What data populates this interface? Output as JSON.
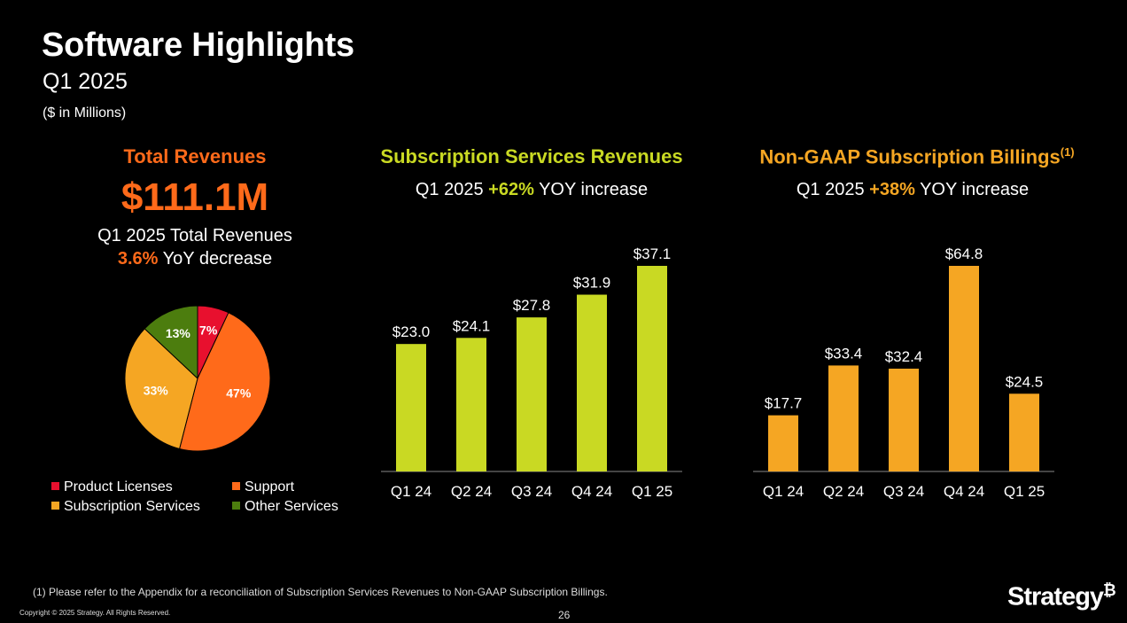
{
  "page": {
    "title": "Software Highlights",
    "subtitle": "Q1 2025",
    "units": "($ in Millions)",
    "footnote": "(1) Please refer to the Appendix for a reconciliation of Subscription Services Revenues to Non-GAAP Subscription Billings.",
    "copyright": "Copyright © 2025 Strategy. All Rights Reserved.",
    "page_number": "26",
    "logo_text": "Strategy",
    "logo_mark": "₿"
  },
  "total": {
    "title": "Total Revenues",
    "big_value": "$111.1M",
    "line1": "Q1 2025 Total Revenues",
    "change_value": "3.6%",
    "change_text": " YoY decrease"
  },
  "subs": {
    "title": "Subscription Services Revenues",
    "prefix": "Q1 2025 ",
    "change_value": "+62%",
    "suffix": " YOY increase"
  },
  "billings": {
    "title": "Non-GAAP Subscription Billings",
    "footnote_ref": "(1)",
    "prefix": "Q1 2025 ",
    "change_value": "+38%",
    "suffix": " YOY increase"
  },
  "chart_data": [
    {
      "type": "pie",
      "title": "Total Revenues",
      "slices": [
        {
          "label": "Product Licenses",
          "value": 7,
          "display": "7%",
          "color": "#e8102e"
        },
        {
          "label": "Support",
          "value": 47,
          "display": "47%",
          "color": "#ff6a1a"
        },
        {
          "label": "Subscription Services",
          "value": 33,
          "display": "33%",
          "color": "#f5a623"
        },
        {
          "label": "Other Services",
          "value": 13,
          "display": "13%",
          "color": "#4c7d0e"
        }
      ]
    },
    {
      "type": "bar",
      "title": "Subscription Services Revenues",
      "categories": [
        "Q1 24",
        "Q2 24",
        "Q3 24",
        "Q4 24",
        "Q1 25"
      ],
      "values": [
        23.0,
        24.1,
        27.8,
        31.9,
        37.1
      ],
      "labels": [
        "$23.0",
        "$24.1",
        "$27.8",
        "$31.9",
        "$37.1"
      ],
      "color": "#c9d923",
      "ylim": [
        0,
        37.1
      ]
    },
    {
      "type": "bar",
      "title": "Non-GAAP Subscription Billings",
      "categories": [
        "Q1 24",
        "Q2 24",
        "Q3 24",
        "Q4 24",
        "Q1 25"
      ],
      "values": [
        17.7,
        33.4,
        32.4,
        64.8,
        24.5
      ],
      "labels": [
        "$17.7",
        "$33.4",
        "$32.4",
        "$64.8",
        "$24.5"
      ],
      "color": "#f5a623",
      "ylim": [
        0,
        64.8
      ]
    }
  ]
}
